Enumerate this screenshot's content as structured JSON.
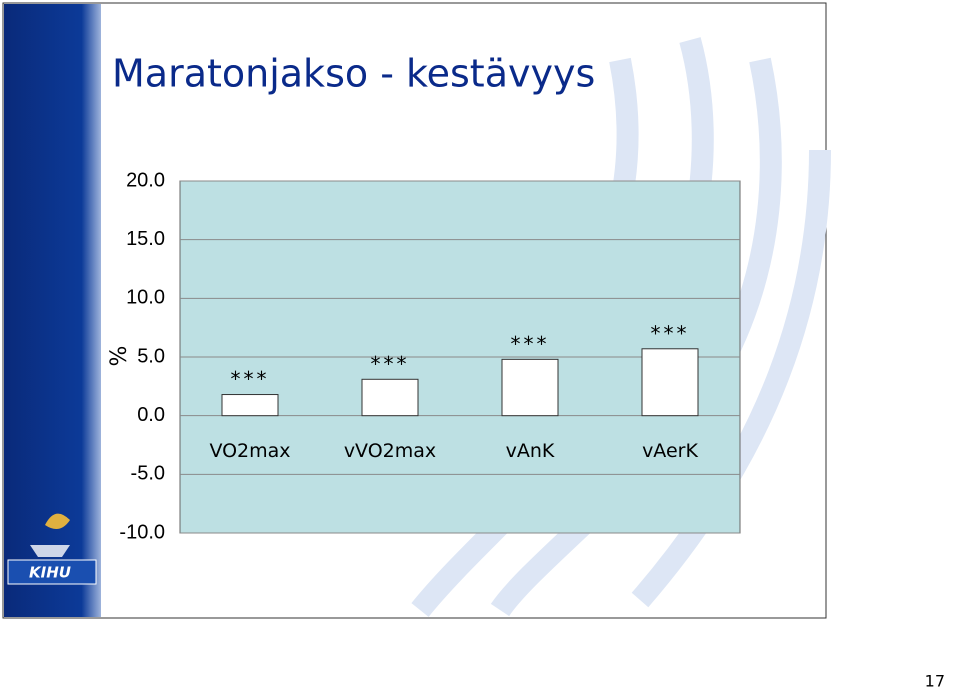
{
  "chart_data": {
    "type": "bar",
    "title": "Maratonjakso - kestävyys",
    "y_label": "%",
    "categories": [
      "VO2max",
      "vVO2max",
      "vAnK",
      "vAerK"
    ],
    "values": [
      1.8,
      3.1,
      4.8,
      5.7
    ],
    "annotations": [
      "***",
      "***",
      "***",
      "***"
    ],
    "color": "#ffffff",
    "ylim": [
      -10,
      20
    ],
    "yticks": [
      {
        "value": 20,
        "label": "20.0"
      },
      {
        "value": 15,
        "label": "15.0"
      },
      {
        "value": 10,
        "label": "10.0"
      },
      {
        "value": 5,
        "label": "5.0"
      },
      {
        "value": 0,
        "label": "0.0"
      },
      {
        "value": -5,
        "label": "-5.0"
      },
      {
        "value": -10,
        "label": "-10.0"
      }
    ],
    "grid": true
  },
  "logo_text": "KIHU",
  "page_number": "17"
}
